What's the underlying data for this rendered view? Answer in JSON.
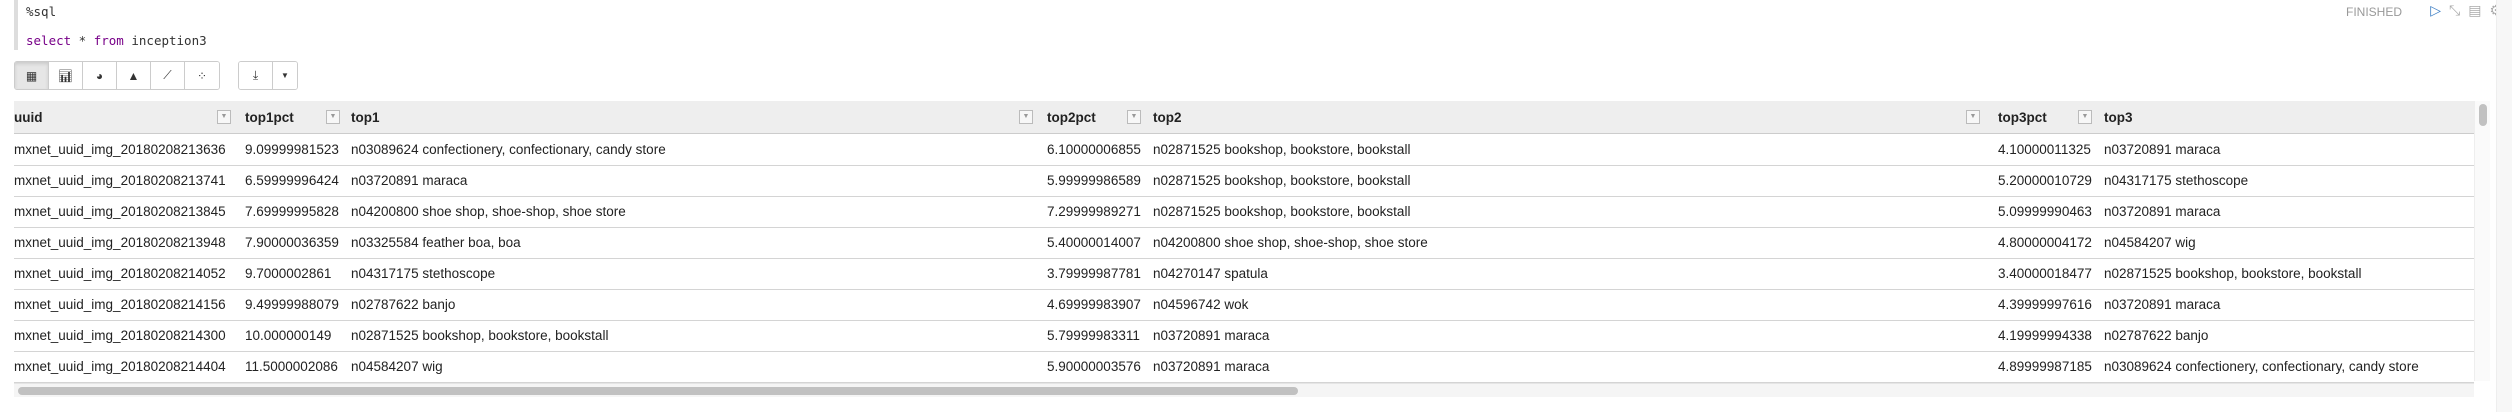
{
  "paragraph": {
    "interpreter": "%sql",
    "query_kw1": "select",
    "query_star": " * ",
    "query_kw2": "from",
    "query_table": " inception3",
    "status": "FINISHED"
  },
  "icons": {
    "run": "play-icon",
    "collapse": "collapse-icon",
    "book": "book-icon",
    "settings": "gear-icon"
  },
  "toolbar": {
    "views": [
      "table-icon",
      "bar-chart-icon",
      "pie-chart-icon",
      "area-chart-icon",
      "line-chart-icon",
      "scatter-chart-icon"
    ],
    "active": "table-icon",
    "download": "download-icon",
    "dropdown": "caret-down-icon"
  },
  "table": {
    "columns": [
      "uuid",
      "top1pct",
      "top1",
      "top2pct",
      "top2",
      "top3pct",
      "top3"
    ],
    "rows": [
      [
        "mxnet_uuid_img_20180208213636",
        "9.09999981523",
        "n03089624 confectionery, confectionary, candy store",
        "6.10000006855",
        "n02871525 bookshop, bookstore, bookstall",
        "4.10000011325",
        "n03720891 maraca"
      ],
      [
        "mxnet_uuid_img_20180208213741",
        "6.59999996424",
        "n03720891 maraca",
        "5.99999986589",
        "n02871525 bookshop, bookstore, bookstall",
        "5.20000010729",
        "n04317175 stethoscope"
      ],
      [
        "mxnet_uuid_img_20180208213845",
        "7.69999995828",
        "n04200800 shoe shop, shoe-shop, shoe store",
        "7.29999989271",
        "n02871525 bookshop, bookstore, bookstall",
        "5.09999990463",
        "n03720891 maraca"
      ],
      [
        "mxnet_uuid_img_20180208213948",
        "7.90000036359",
        "n03325584 feather boa, boa",
        "5.40000014007",
        "n04200800 shoe shop, shoe-shop, shoe store",
        "4.80000004172",
        "n04584207 wig"
      ],
      [
        "mxnet_uuid_img_20180208214052",
        "9.7000002861",
        "n04317175 stethoscope",
        "3.79999987781",
        "n04270147 spatula",
        "3.40000018477",
        "n02871525 bookshop, bookstore, bookstall"
      ],
      [
        "mxnet_uuid_img_20180208214156",
        "9.49999988079",
        "n02787622 banjo",
        "4.69999983907",
        "n04596742 wok",
        "4.39999997616",
        "n03720891 maraca"
      ],
      [
        "mxnet_uuid_img_20180208214300",
        "10.000000149",
        "n02871525 bookshop, bookstore, bookstall",
        "5.79999983311",
        "n03720891 maraca",
        "4.19999994338",
        "n02787622 banjo"
      ],
      [
        "mxnet_uuid_img_20180208214404",
        "11.5000002086",
        "n04584207 wig",
        "5.90000003576",
        "n03720891 maraca",
        "4.89999987185",
        "n03089624 confectionery, confectionary, candy store"
      ]
    ]
  }
}
